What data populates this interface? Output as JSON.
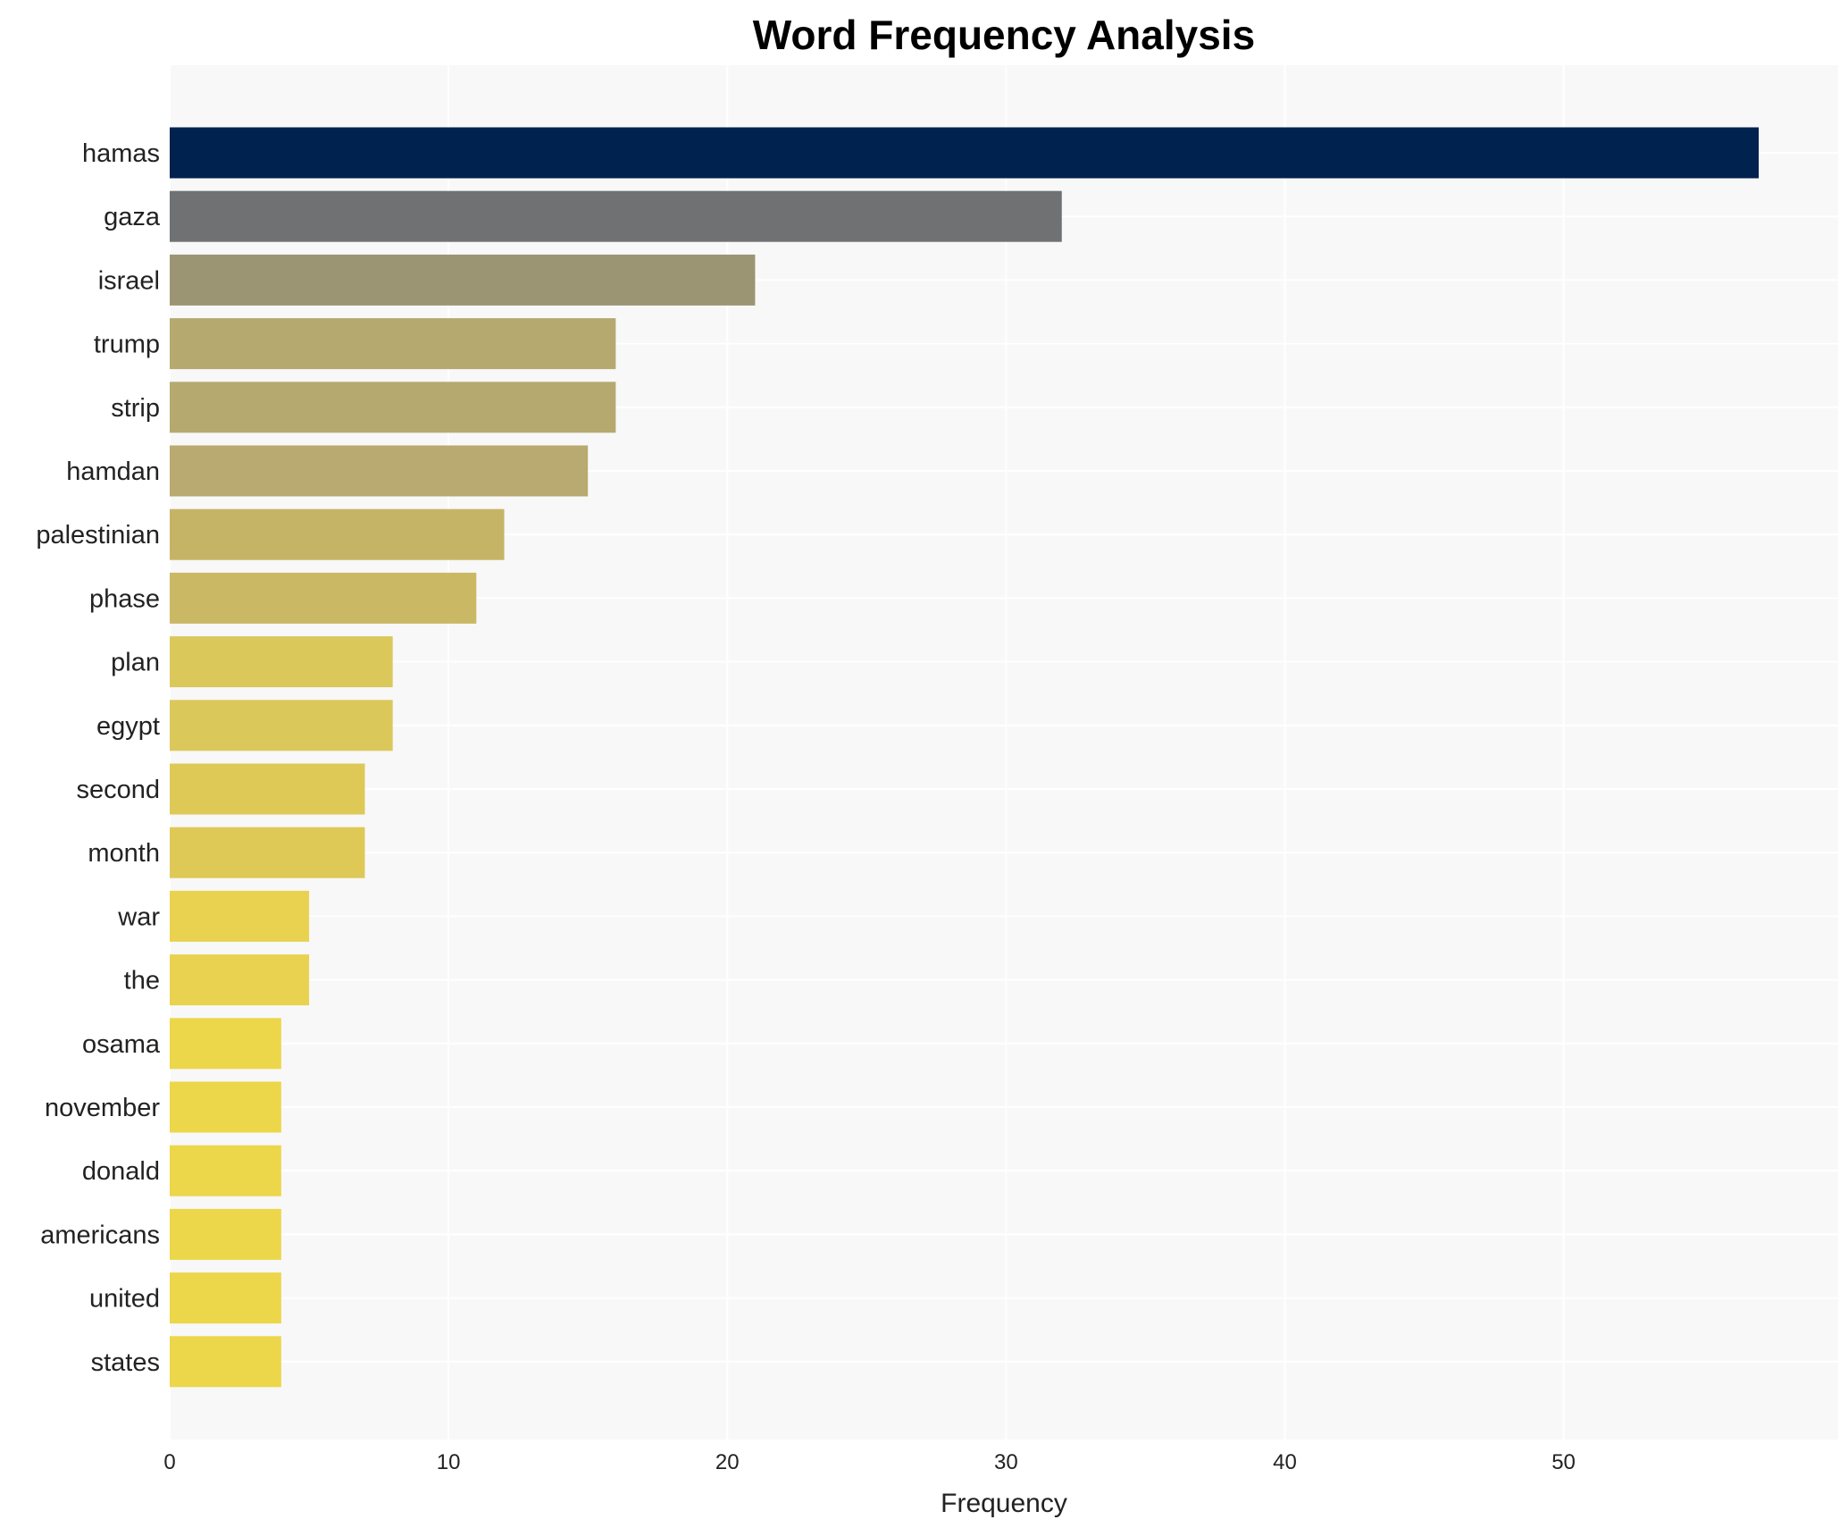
{
  "chart_data": {
    "type": "bar",
    "orientation": "horizontal",
    "title": "Word Frequency Analysis",
    "xlabel": "Frequency",
    "ylabel": "",
    "xlim": [
      0,
      59.85
    ],
    "xticks": [
      0,
      10,
      20,
      30,
      40,
      50
    ],
    "grid": true,
    "categories": [
      "hamas",
      "gaza",
      "israel",
      "trump",
      "strip",
      "hamdan",
      "palestinian",
      "phase",
      "plan",
      "egypt",
      "second",
      "month",
      "war",
      "the",
      "osama",
      "november",
      "donald",
      "americans",
      "united",
      "states"
    ],
    "values": [
      57,
      32,
      21,
      16,
      16,
      15,
      12,
      11,
      8,
      8,
      7,
      7,
      5,
      5,
      4,
      4,
      4,
      4,
      4,
      4
    ],
    "colors": [
      "#00224e",
      "#707173",
      "#9c9574",
      "#b5a970",
      "#b5a970",
      "#b8aa70",
      "#c6b466",
      "#cab865",
      "#dbc85b",
      "#dbc85b",
      "#dec957",
      "#dec957",
      "#e8d24f",
      "#e8d24f",
      "#ecd64a",
      "#ecd64a",
      "#ecd64a",
      "#ecd64a",
      "#ecd64a",
      "#ecd64a"
    ],
    "background": "#f8f8f8"
  }
}
